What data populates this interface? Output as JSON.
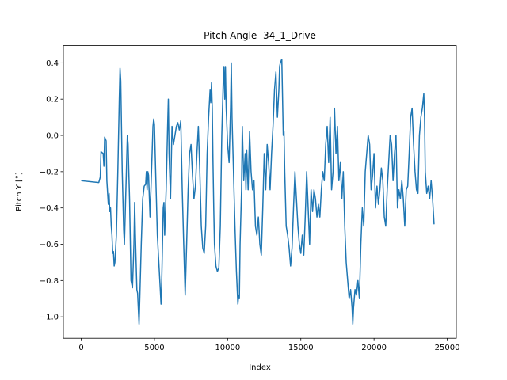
{
  "chart_data": {
    "type": "line",
    "title": "Pitch Angle  34_1_Drive",
    "x_label": "Index",
    "y_label": "Pitch Y [°]",
    "color": "#1f77b4",
    "x": [
      0,
      1200,
      1300,
      1350,
      1500,
      1550,
      1600,
      1700,
      1750,
      1850,
      1900,
      1950,
      2000,
      2050,
      2100,
      2150,
      2200,
      2250,
      2300,
      2400,
      2500,
      2600,
      2650,
      2700,
      2800,
      2900,
      2950,
      3000,
      3100,
      3150,
      3200,
      3300,
      3400,
      3500,
      3600,
      3650,
      3700,
      3800,
      3850,
      3950,
      4000,
      4100,
      4200,
      4300,
      4400,
      4450,
      4500,
      4550,
      4600,
      4700,
      4800,
      4900,
      4950,
      5000,
      5100,
      5200,
      5300,
      5400,
      5450,
      5500,
      5600,
      5650,
      5700,
      5800,
      5900,
      5950,
      6000,
      6100,
      6200,
      6300,
      6400,
      6500,
      6600,
      6700,
      6800,
      6900,
      7000,
      7100,
      7200,
      7300,
      7400,
      7500,
      7600,
      7700,
      7800,
      7900,
      8000,
      8100,
      8200,
      8300,
      8400,
      8500,
      8600,
      8700,
      8800,
      8850,
      8900,
      8950,
      9000,
      9050,
      9100,
      9200,
      9300,
      9400,
      9500,
      9600,
      9700,
      9750,
      9800,
      9850,
      9900,
      10000,
      10100,
      10200,
      10250,
      10300,
      10400,
      10500,
      10600,
      10700,
      10750,
      10800,
      10850,
      10950,
      11000,
      11050,
      11100,
      11200,
      11250,
      11300,
      11400,
      11500,
      11600,
      11700,
      11800,
      11900,
      12000,
      12100,
      12200,
      12300,
      12400,
      12500,
      12600,
      12700,
      12800,
      12900,
      13000,
      13100,
      13200,
      13300,
      13400,
      13500,
      13550,
      13600,
      13700,
      13800,
      13850,
      13900,
      14000,
      14100,
      14200,
      14300,
      14400,
      14500,
      14600,
      14700,
      14800,
      14900,
      15000,
      15100,
      15200,
      15300,
      15400,
      15500,
      15600,
      15700,
      15800,
      15900,
      16000,
      16100,
      16200,
      16300,
      16400,
      16500,
      16600,
      16700,
      16800,
      16900,
      17000,
      17100,
      17200,
      17300,
      17400,
      17500,
      17600,
      17700,
      17800,
      17900,
      18000,
      18100,
      18200,
      18300,
      18400,
      18500,
      18550,
      18600,
      18700,
      18800,
      18900,
      19000,
      19100,
      19200,
      19300,
      19400,
      19500,
      19600,
      19700,
      19800,
      19900,
      20000,
      20100,
      20200,
      20300,
      20400,
      20500,
      20600,
      20700,
      20800,
      20900,
      21000,
      21100,
      21200,
      21300,
      21400,
      21500,
      21600,
      21700,
      21800,
      21900,
      22000,
      22100,
      22200,
      22300,
      22400,
      22500,
      22600,
      22700,
      22800,
      22900,
      23000,
      23100,
      23200,
      23300,
      23400,
      23450,
      23500,
      23600,
      23700,
      23800,
      23900,
      24000,
      24100
    ],
    "values": [
      -0.25,
      -0.26,
      -0.23,
      -0.09,
      -0.1,
      -0.17,
      -0.01,
      -0.03,
      -0.25,
      -0.38,
      -0.32,
      -0.42,
      -0.4,
      -0.5,
      -0.55,
      -0.65,
      -0.64,
      -0.72,
      -0.7,
      -0.55,
      -0.2,
      0.2,
      0.37,
      0.3,
      -0.2,
      -0.52,
      -0.6,
      -0.45,
      -0.15,
      0.0,
      -0.05,
      -0.35,
      -0.8,
      -0.84,
      -0.6,
      -0.37,
      -0.55,
      -0.85,
      -0.87,
      -1.04,
      -0.9,
      -0.6,
      -0.35,
      -0.28,
      -0.27,
      -0.2,
      -0.3,
      -0.2,
      -0.22,
      -0.45,
      -0.2,
      0.05,
      0.09,
      0.06,
      -0.25,
      -0.55,
      -0.7,
      -0.85,
      -0.93,
      -0.8,
      -0.4,
      -0.37,
      -0.55,
      -0.3,
      0.05,
      0.2,
      -0.1,
      -0.35,
      0.05,
      -0.05,
      0.0,
      0.05,
      0.07,
      0.03,
      0.08,
      -0.3,
      -0.6,
      -0.88,
      -0.6,
      -0.3,
      -0.1,
      -0.05,
      -0.22,
      -0.35,
      -0.28,
      -0.1,
      0.05,
      -0.2,
      -0.5,
      -0.62,
      -0.65,
      -0.5,
      -0.1,
      0.1,
      0.25,
      0.18,
      0.29,
      0.15,
      -0.15,
      -0.4,
      -0.6,
      -0.72,
      -0.75,
      -0.73,
      -0.5,
      0.0,
      0.3,
      0.38,
      0.2,
      0.38,
      0.15,
      -0.05,
      -0.15,
      0.15,
      0.4,
      0.1,
      -0.2,
      -0.5,
      -0.75,
      -0.93,
      -0.88,
      -0.9,
      -0.6,
      -0.3,
      0.05,
      -0.1,
      -0.25,
      -0.1,
      -0.3,
      -0.08,
      -0.3,
      0.02,
      -0.2,
      -0.3,
      -0.25,
      -0.5,
      -0.55,
      -0.45,
      -0.6,
      -0.66,
      -0.4,
      -0.1,
      -0.3,
      -0.05,
      -0.15,
      -0.3,
      -0.1,
      0.05,
      0.25,
      0.35,
      0.1,
      0.25,
      0.38,
      0.4,
      0.42,
      0.0,
      0.02,
      -0.2,
      -0.5,
      -0.55,
      -0.62,
      -0.72,
      -0.62,
      -0.4,
      -0.2,
      -0.35,
      -0.5,
      -0.6,
      -0.65,
      -0.55,
      -0.66,
      -0.45,
      -0.2,
      -0.4,
      -0.6,
      -0.3,
      -0.42,
      -0.3,
      -0.35,
      -0.45,
      -0.38,
      -0.45,
      -0.3,
      -0.2,
      -0.25,
      -0.05,
      0.05,
      -0.15,
      0.1,
      -0.3,
      -0.2,
      0.15,
      -0.1,
      0.05,
      -0.25,
      -0.15,
      -0.35,
      -0.2,
      -0.5,
      -0.7,
      -0.8,
      -0.9,
      -0.85,
      -0.95,
      -1.04,
      -0.95,
      -0.85,
      -0.88,
      -0.8,
      -0.9,
      -0.6,
      -0.4,
      -0.5,
      -0.2,
      -0.1,
      0.0,
      -0.05,
      -0.3,
      -0.22,
      -0.1,
      -0.4,
      -0.28,
      -0.38,
      -0.3,
      -0.18,
      -0.25,
      -0.45,
      -0.5,
      -0.3,
      -0.15,
      0.0,
      -0.05,
      -0.25,
      -0.1,
      0.0,
      -0.4,
      -0.3,
      -0.35,
      -0.25,
      -0.35,
      -0.5,
      -0.3,
      -0.28,
      -0.1,
      0.1,
      0.15,
      -0.05,
      -0.2,
      -0.3,
      -0.32,
      0.0,
      0.1,
      0.15,
      0.23,
      0.1,
      -0.2,
      -0.32,
      -0.28,
      -0.35,
      -0.25,
      -0.35,
      -0.49
    ],
    "xlim": [
      -1220,
      25620
    ],
    "ylim": [
      -1.118,
      0.495
    ],
    "xticks": [
      0,
      5000,
      10000,
      15000,
      20000,
      25000
    ],
    "yticks": [
      {
        "value": -1.0,
        "label": "−1.0"
      },
      {
        "value": -0.8,
        "label": "−0.8"
      },
      {
        "value": -0.6,
        "label": "−0.6"
      },
      {
        "value": -0.4,
        "label": "−0.4"
      },
      {
        "value": -0.2,
        "label": "−0.2"
      },
      {
        "value": 0.0,
        "label": "0.0"
      },
      0.2,
      0.4
    ],
    "grid": false
  }
}
